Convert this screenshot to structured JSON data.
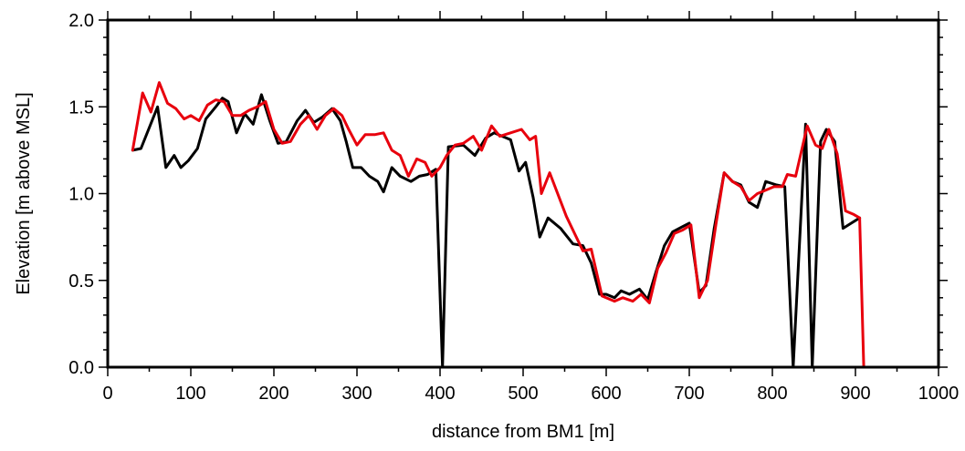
{
  "chart_data": {
    "type": "line",
    "title": "",
    "xlabel": "distance from BM1 [m]",
    "ylabel": "Elevation [m above MSL]",
    "xlim": [
      0,
      1000
    ],
    "ylim": [
      0.0,
      2.0
    ],
    "xticks": [
      "0",
      "100",
      "200",
      "300",
      "400",
      "500",
      "600",
      "700",
      "800",
      "900",
      "1000"
    ],
    "yticks": [
      "0.0",
      "0.5",
      "1.0",
      "1.5",
      "2.0"
    ],
    "grid": false,
    "legend": "none",
    "series": [
      {
        "color": "#000000",
        "points": [
          [
            30,
            1.25
          ],
          [
            40,
            1.26
          ],
          [
            60,
            1.5
          ],
          [
            70,
            1.15
          ],
          [
            80,
            1.22
          ],
          [
            88,
            1.15
          ],
          [
            97,
            1.19
          ],
          [
            108,
            1.26
          ],
          [
            118,
            1.43
          ],
          [
            130,
            1.5
          ],
          [
            138,
            1.55
          ],
          [
            145,
            1.53
          ],
          [
            155,
            1.35
          ],
          [
            165,
            1.46
          ],
          [
            175,
            1.4
          ],
          [
            185,
            1.57
          ],
          [
            195,
            1.42
          ],
          [
            205,
            1.29
          ],
          [
            215,
            1.3
          ],
          [
            228,
            1.42
          ],
          [
            238,
            1.48
          ],
          [
            248,
            1.41
          ],
          [
            258,
            1.44
          ],
          [
            270,
            1.49
          ],
          [
            280,
            1.42
          ],
          [
            287,
            1.3
          ],
          [
            295,
            1.15
          ],
          [
            305,
            1.15
          ],
          [
            315,
            1.1
          ],
          [
            325,
            1.07
          ],
          [
            332,
            1.01
          ],
          [
            342,
            1.15
          ],
          [
            352,
            1.1
          ],
          [
            365,
            1.07
          ],
          [
            375,
            1.1
          ],
          [
            385,
            1.11
          ],
          [
            395,
            1.14
          ],
          [
            403,
            0.0
          ],
          [
            410,
            1.27
          ],
          [
            428,
            1.28
          ],
          [
            442,
            1.22
          ],
          [
            455,
            1.32
          ],
          [
            465,
            1.35
          ],
          [
            475,
            1.33
          ],
          [
            485,
            1.31
          ],
          [
            495,
            1.13
          ],
          [
            503,
            1.18
          ],
          [
            512,
            0.98
          ],
          [
            520,
            0.75
          ],
          [
            530,
            0.86
          ],
          [
            545,
            0.8
          ],
          [
            560,
            0.71
          ],
          [
            572,
            0.7
          ],
          [
            582,
            0.6
          ],
          [
            592,
            0.42
          ],
          [
            600,
            0.42
          ],
          [
            610,
            0.4
          ],
          [
            618,
            0.44
          ],
          [
            628,
            0.42
          ],
          [
            640,
            0.45
          ],
          [
            650,
            0.39
          ],
          [
            660,
            0.55
          ],
          [
            670,
            0.7
          ],
          [
            680,
            0.78
          ],
          [
            692,
            0.81
          ],
          [
            700,
            0.83
          ],
          [
            712,
            0.43
          ],
          [
            720,
            0.47
          ],
          [
            730,
            0.8
          ],
          [
            742,
            1.12
          ],
          [
            752,
            1.07
          ],
          [
            762,
            1.05
          ],
          [
            772,
            0.95
          ],
          [
            782,
            0.92
          ],
          [
            792,
            1.07
          ],
          [
            805,
            1.05
          ],
          [
            815,
            1.04
          ],
          [
            825,
            0.0
          ],
          [
            840,
            1.4
          ],
          [
            848,
            0.0
          ],
          [
            858,
            1.3
          ],
          [
            865,
            1.37
          ],
          [
            875,
            1.3
          ],
          [
            885,
            0.8
          ],
          [
            895,
            0.83
          ],
          [
            905,
            0.86
          ]
        ]
      },
      {
        "color": "#e8000d",
        "points": [
          [
            30,
            1.25
          ],
          [
            42,
            1.58
          ],
          [
            52,
            1.47
          ],
          [
            62,
            1.64
          ],
          [
            72,
            1.52
          ],
          [
            82,
            1.49
          ],
          [
            92,
            1.43
          ],
          [
            100,
            1.45
          ],
          [
            110,
            1.42
          ],
          [
            120,
            1.51
          ],
          [
            130,
            1.54
          ],
          [
            140,
            1.53
          ],
          [
            150,
            1.45
          ],
          [
            160,
            1.45
          ],
          [
            170,
            1.48
          ],
          [
            180,
            1.5
          ],
          [
            190,
            1.53
          ],
          [
            200,
            1.37
          ],
          [
            210,
            1.29
          ],
          [
            220,
            1.3
          ],
          [
            232,
            1.4
          ],
          [
            242,
            1.45
          ],
          [
            252,
            1.37
          ],
          [
            262,
            1.45
          ],
          [
            272,
            1.49
          ],
          [
            282,
            1.45
          ],
          [
            290,
            1.37
          ],
          [
            300,
            1.28
          ],
          [
            310,
            1.34
          ],
          [
            322,
            1.34
          ],
          [
            332,
            1.35
          ],
          [
            342,
            1.25
          ],
          [
            352,
            1.22
          ],
          [
            362,
            1.1
          ],
          [
            372,
            1.2
          ],
          [
            382,
            1.18
          ],
          [
            390,
            1.1
          ],
          [
            400,
            1.15
          ],
          [
            408,
            1.22
          ],
          [
            418,
            1.28
          ],
          [
            428,
            1.29
          ],
          [
            440,
            1.33
          ],
          [
            450,
            1.25
          ],
          [
            462,
            1.39
          ],
          [
            472,
            1.33
          ],
          [
            485,
            1.35
          ],
          [
            498,
            1.37
          ],
          [
            508,
            1.31
          ],
          [
            515,
            1.33
          ],
          [
            522,
            1.0
          ],
          [
            532,
            1.12
          ],
          [
            552,
            0.87
          ],
          [
            572,
            0.67
          ],
          [
            582,
            0.68
          ],
          [
            595,
            0.41
          ],
          [
            610,
            0.38
          ],
          [
            620,
            0.4
          ],
          [
            632,
            0.38
          ],
          [
            642,
            0.42
          ],
          [
            652,
            0.37
          ],
          [
            662,
            0.57
          ],
          [
            672,
            0.66
          ],
          [
            682,
            0.77
          ],
          [
            692,
            0.79
          ],
          [
            702,
            0.82
          ],
          [
            712,
            0.4
          ],
          [
            722,
            0.5
          ],
          [
            732,
            0.82
          ],
          [
            742,
            1.12
          ],
          [
            752,
            1.07
          ],
          [
            762,
            1.04
          ],
          [
            772,
            0.96
          ],
          [
            782,
            1.0
          ],
          [
            792,
            1.02
          ],
          [
            802,
            1.04
          ],
          [
            812,
            1.04
          ],
          [
            818,
            1.11
          ],
          [
            828,
            1.1
          ],
          [
            842,
            1.39
          ],
          [
            852,
            1.28
          ],
          [
            860,
            1.26
          ],
          [
            868,
            1.37
          ],
          [
            878,
            1.23
          ],
          [
            888,
            0.9
          ],
          [
            898,
            0.88
          ],
          [
            905,
            0.86
          ],
          [
            910,
            0.0
          ]
        ]
      }
    ]
  }
}
